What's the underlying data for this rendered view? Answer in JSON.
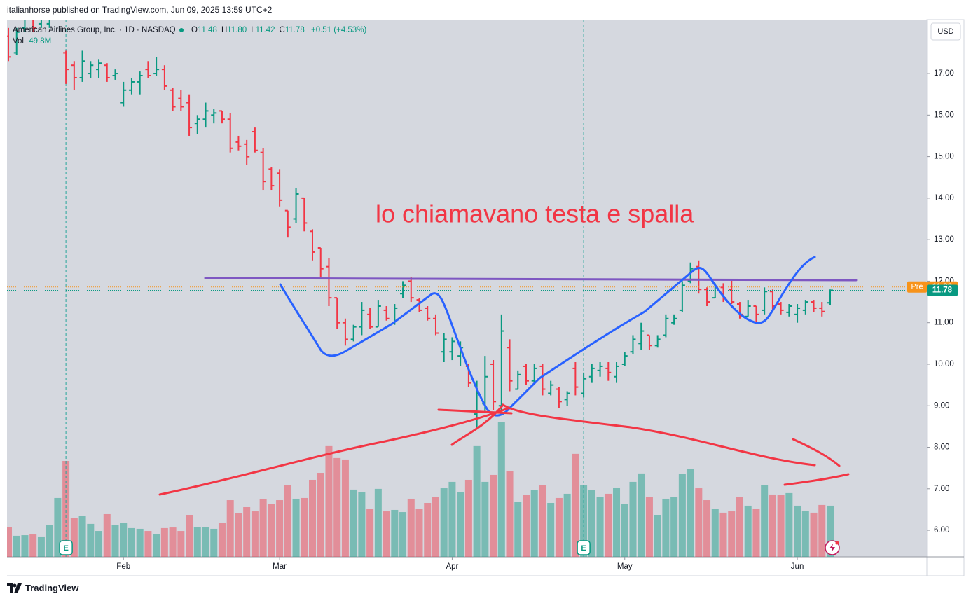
{
  "header": {
    "text": "italianhorse published on TradingView.com, Jun 09, 2025 13:59 UTC+2"
  },
  "footer": {
    "brand": "TradingView"
  },
  "chart_data": {
    "type": "ohlc",
    "legend": {
      "symbol": "American Airlines Group, Inc. · 1D · NASDAQ",
      "fields": [
        {
          "key": "O",
          "text": "11.48"
        },
        {
          "key": "H",
          "text": "11.80"
        },
        {
          "key": "L",
          "text": "11.42"
        },
        {
          "key": "C",
          "text": "11.78"
        }
      ],
      "change": "+0.51 (+4.53%)",
      "volume_key": "Vol",
      "volume_text": "49.8M"
    },
    "currency": "USD",
    "annotation": "lo chiamavano testa e spalla",
    "categories": [
      null,
      null,
      null,
      null,
      null,
      null,
      null,
      null,
      null,
      null,
      null,
      null,
      null,
      null,
      "Feb",
      null,
      null,
      null,
      null,
      null,
      null,
      null,
      null,
      null,
      null,
      null,
      null,
      null,
      null,
      null,
      null,
      null,
      null,
      "Mar",
      null,
      null,
      null,
      null,
      null,
      null,
      null,
      null,
      null,
      null,
      null,
      null,
      null,
      null,
      null,
      null,
      null,
      null,
      null,
      null,
      "Apr",
      null,
      null,
      null,
      null,
      null,
      null,
      null,
      null,
      null,
      null,
      null,
      null,
      null,
      null,
      null,
      null,
      null,
      null,
      null,
      null,
      "May",
      null,
      null,
      null,
      null,
      null,
      null,
      null,
      null,
      null,
      null,
      null,
      null,
      null,
      null,
      null,
      null,
      null,
      null,
      null,
      null,
      "Jun",
      null,
      null,
      null,
      null
    ],
    "ohlc": {
      "up_color": "#089981",
      "down_color": "#f23645",
      "open": [
        17.9,
        17.5,
        18.1,
        18.4,
        18.2,
        18.2,
        18.4,
        17.5,
        17.2,
        16.9,
        17.0,
        17.1,
        17.2,
        16.95,
        16.3,
        16.6,
        16.8,
        17.1,
        17.0,
        17.1,
        16.6,
        16.4,
        16.3,
        15.8,
        15.9,
        16.0,
        16.1,
        15.9,
        15.35,
        15.3,
        15.6,
        15.1,
        14.7,
        14.6,
        13.7,
        13.5,
        14.0,
        13.2,
        12.8,
        12.35,
        11.6,
        11.0,
        10.6,
        10.9,
        11.2,
        10.9,
        11.3,
        11.0,
        11.7,
        12.0,
        11.55,
        11.35,
        11.1,
        10.3,
        10.3,
        10.2,
        9.95,
        8.8,
        9.05,
        10.0,
        9.0,
        10.4,
        9.4,
        9.95,
        9.6,
        9.95,
        9.3,
        9.4,
        9.15,
        9.9,
        9.3,
        9.7,
        9.85,
        9.9,
        9.7,
        10.0,
        10.3,
        10.5,
        10.7,
        10.45,
        10.7,
        11.0,
        11.3,
        12.0,
        12.35,
        11.8,
        11.6,
        11.85,
        11.8,
        11.45,
        11.15,
        11.4,
        11.3,
        11.75,
        11.45,
        11.25,
        11.2,
        11.3,
        11.5,
        11.35,
        11.48
      ],
      "high": [
        18.1,
        18.1,
        18.6,
        18.5,
        18.7,
        18.6,
        18.8,
        17.55,
        17.3,
        17.55,
        17.3,
        17.35,
        17.25,
        17.1,
        16.8,
        16.9,
        17.05,
        17.3,
        17.4,
        17.2,
        16.65,
        16.6,
        16.5,
        16.0,
        16.3,
        16.15,
        16.1,
        16.05,
        15.5,
        15.4,
        15.7,
        15.2,
        14.75,
        14.7,
        13.7,
        14.25,
        14.0,
        13.25,
        12.8,
        12.55,
        11.6,
        11.1,
        10.95,
        11.5,
        11.35,
        11.55,
        11.4,
        11.45,
        12.0,
        12.1,
        11.6,
        11.4,
        11.2,
        10.75,
        10.65,
        10.55,
        10.0,
        9.6,
        10.2,
        10.1,
        11.2,
        10.6,
        9.85,
        10.0,
        10.0,
        10.0,
        9.6,
        9.45,
        9.35,
        10.05,
        9.8,
        10.0,
        10.05,
        10.05,
        10.05,
        10.3,
        10.7,
        11.0,
        10.7,
        10.7,
        11.2,
        11.2,
        12.0,
        12.45,
        12.5,
        11.85,
        11.95,
        11.95,
        12.05,
        11.5,
        11.55,
        11.4,
        11.85,
        11.8,
        11.5,
        11.45,
        11.45,
        11.55,
        11.55,
        11.5,
        11.8
      ],
      "low": [
        17.3,
        17.45,
        18.0,
        18.0,
        18.1,
        18.1,
        18.3,
        16.75,
        16.6,
        16.8,
        16.9,
        16.9,
        16.8,
        16.85,
        16.2,
        16.5,
        16.5,
        16.9,
        16.95,
        16.6,
        16.1,
        16.1,
        15.5,
        15.55,
        15.7,
        15.8,
        15.8,
        15.1,
        15.15,
        14.8,
        15.1,
        14.2,
        14.2,
        13.8,
        13.05,
        13.4,
        13.2,
        12.5,
        12.1,
        11.4,
        10.85,
        10.45,
        10.55,
        10.7,
        10.85,
        10.9,
        11.05,
        10.95,
        11.6,
        11.5,
        11.25,
        11.05,
        10.7,
        10.05,
        10.1,
        9.95,
        9.45,
        8.45,
        8.85,
        8.9,
        8.9,
        9.35,
        9.4,
        9.5,
        9.55,
        9.25,
        9.25,
        8.95,
        9.0,
        9.25,
        9.2,
        9.55,
        9.7,
        9.6,
        9.55,
        9.95,
        10.25,
        10.35,
        10.35,
        10.4,
        10.65,
        10.95,
        11.25,
        11.95,
        11.7,
        11.4,
        11.6,
        11.5,
        11.45,
        11.1,
        11.15,
        11.0,
        11.2,
        11.3,
        11.2,
        11.15,
        11.0,
        11.2,
        11.25,
        11.15,
        11.42
      ],
      "close": [
        17.4,
        18.0,
        18.4,
        18.1,
        18.5,
        18.5,
        18.6,
        17.1,
        16.9,
        17.3,
        17.2,
        17.25,
        16.9,
        17.0,
        16.6,
        16.8,
        16.95,
        16.95,
        17.1,
        16.7,
        16.2,
        16.2,
        15.7,
        15.9,
        16.1,
        16.05,
        15.9,
        15.2,
        15.25,
        15.0,
        15.15,
        14.4,
        14.3,
        13.95,
        13.3,
        14.1,
        13.4,
        12.7,
        12.3,
        11.6,
        11.0,
        10.6,
        10.9,
        11.3,
        10.9,
        11.4,
        11.1,
        11.35,
        11.9,
        11.6,
        11.3,
        11.1,
        10.75,
        10.6,
        10.55,
        10.4,
        9.55,
        9.3,
        9.7,
        9.1,
        10.8,
        9.6,
        9.75,
        9.6,
        9.9,
        9.4,
        9.5,
        9.1,
        9.3,
        9.45,
        9.65,
        9.9,
        9.95,
        9.8,
        9.95,
        10.2,
        10.6,
        10.8,
        10.45,
        10.6,
        11.1,
        11.1,
        11.9,
        12.3,
        11.8,
        11.5,
        11.85,
        11.6,
        11.5,
        11.2,
        11.4,
        11.2,
        11.75,
        11.4,
        11.3,
        11.4,
        11.35,
        11.5,
        11.35,
        11.27,
        11.78
      ]
    },
    "volume": {
      "name": "Vol",
      "values": [
        29.3,
        20.5,
        21.1,
        21.8,
        19.8,
        30.7,
        57.3,
        93.4,
        37.5,
        40.2,
        32.1,
        25.2,
        41.6,
        30.7,
        33.4,
        28.0,
        27.3,
        25.2,
        22.5,
        28.0,
        28.6,
        25.2,
        40.9,
        29.3,
        29.3,
        27.3,
        33.4,
        55.2,
        42.3,
        48.4,
        44.3,
        55.9,
        51.8,
        55.2,
        69.6,
        56.6,
        57.3,
        75.0,
        81.8,
        107.8,
        96.2,
        94.8,
        65.5,
        63.4,
        46.4,
        66.2,
        44.3,
        45.7,
        43.6,
        56.6,
        46.4,
        52.5,
        58.0,
        66.8,
        73.0,
        63.4,
        75.0,
        107.8,
        73.0,
        79.8,
        130.9,
        83.2,
        53.2,
        60.0,
        64.8,
        70.2,
        52.5,
        57.3,
        61.4,
        100.3,
        70.2,
        64.8,
        58.0,
        61.4,
        67.5,
        51.8,
        73.0,
        81.2,
        58.0,
        40.9,
        56.6,
        58.0,
        80.5,
        85.3,
        66.8,
        55.2,
        46.4,
        43.0,
        44.3,
        58.0,
        49.8,
        46.4,
        69.6,
        60.7,
        60.0,
        62.1,
        49.8,
        45.0,
        43.0,
        50.5,
        49.8
      ]
    },
    "events": [
      {
        "index": 7,
        "label": "E"
      },
      {
        "index": 70,
        "label": "E"
      }
    ],
    "price_labels": [
      {
        "tag": "Pre",
        "value": 11.86,
        "color": "#f7931a"
      },
      {
        "value": 11.78,
        "color": "#089981"
      }
    ],
    "ylim": [
      5.36,
      18.3
    ],
    "yticks": [
      {
        "value": 6,
        "label": "6.00"
      },
      {
        "value": 7,
        "label": "7.00"
      },
      {
        "value": 8,
        "label": "8.00"
      },
      {
        "value": 9,
        "label": "9.00"
      },
      {
        "value": 10,
        "label": "10.00"
      },
      {
        "value": 11,
        "label": "11.00"
      },
      {
        "value": 12,
        "label": "12.00"
      },
      {
        "value": 13,
        "label": "13.00"
      },
      {
        "value": 14,
        "label": "14.00"
      },
      {
        "value": 15,
        "label": "15.00"
      },
      {
        "value": 16,
        "label": "16.00"
      },
      {
        "value": 17,
        "label": "17.00"
      }
    ],
    "grid": false
  }
}
